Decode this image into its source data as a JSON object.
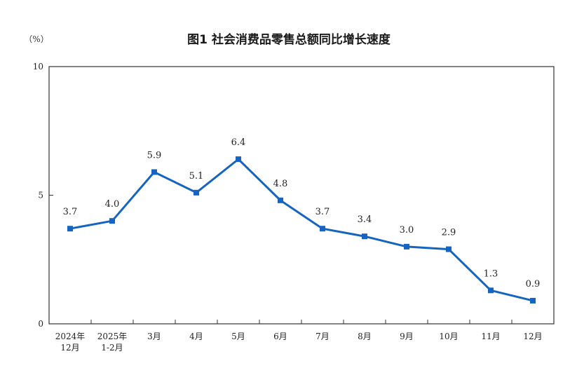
{
  "chart_data": {
    "type": "line",
    "title": "图1  社会消费品零售总额同比增长速度",
    "ylabel": "（%）",
    "xlabel": "",
    "ylim": [
      0,
      10
    ],
    "yticks": [
      0,
      5,
      10
    ],
    "grid": false,
    "legend": "none",
    "categories": [
      [
        "2024年",
        "12月"
      ],
      [
        "2025年",
        "1-2月"
      ],
      [
        "3月"
      ],
      [
        "4月"
      ],
      [
        "5月"
      ],
      [
        "6月"
      ],
      [
        "7月"
      ],
      [
        "8月"
      ],
      [
        "9月"
      ],
      [
        "10月"
      ],
      [
        "11月"
      ],
      [
        "12月"
      ]
    ],
    "series": [
      {
        "values": [
          3.7,
          4.0,
          5.9,
          5.1,
          6.4,
          4.8,
          3.7,
          3.4,
          3.0,
          2.9,
          1.3,
          0.9
        ],
        "labels": [
          "3.7",
          "4.0",
          "5.9",
          "5.1",
          "6.4",
          "4.8",
          "3.7",
          "3.4",
          "3.0",
          "2.9",
          "1.3",
          "0.9"
        ],
        "color": "#1565c0"
      }
    ]
  }
}
